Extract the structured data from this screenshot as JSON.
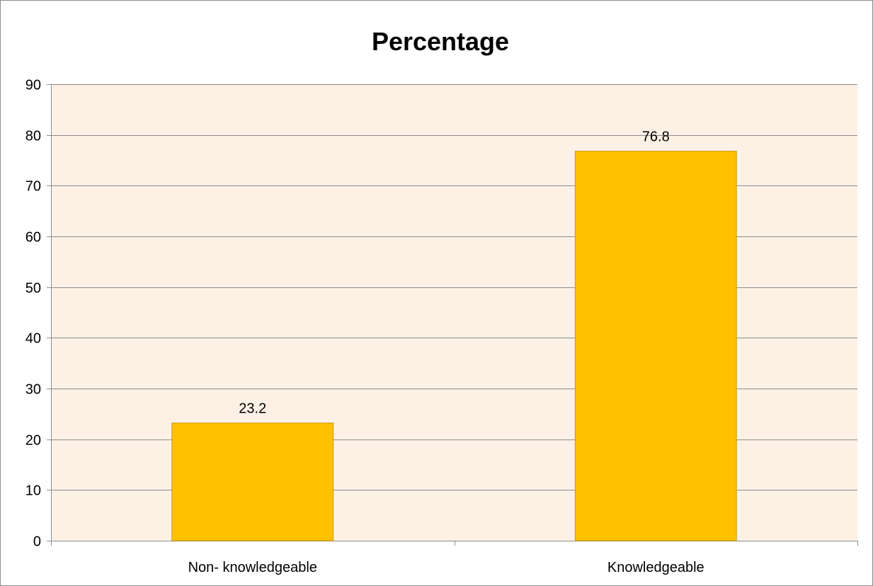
{
  "chart_data": {
    "type": "bar",
    "title": "Percentage",
    "categories": [
      "Non- knowledgeable",
      "Knowledgeable"
    ],
    "values": [
      23.2,
      76.8
    ],
    "data_labels": [
      "23.2",
      "76.8"
    ],
    "ylim": [
      0,
      90
    ],
    "yticks": [
      0,
      10,
      20,
      30,
      40,
      50,
      60,
      70,
      80,
      90
    ],
    "grid": true,
    "legend": "none",
    "xlabel": "",
    "ylabel": "",
    "colors": {
      "bar": "#FFC000",
      "bar_border": "#C9980A",
      "plot_background": "#FDF1E6",
      "gridline": "#8C8C8C"
    }
  }
}
